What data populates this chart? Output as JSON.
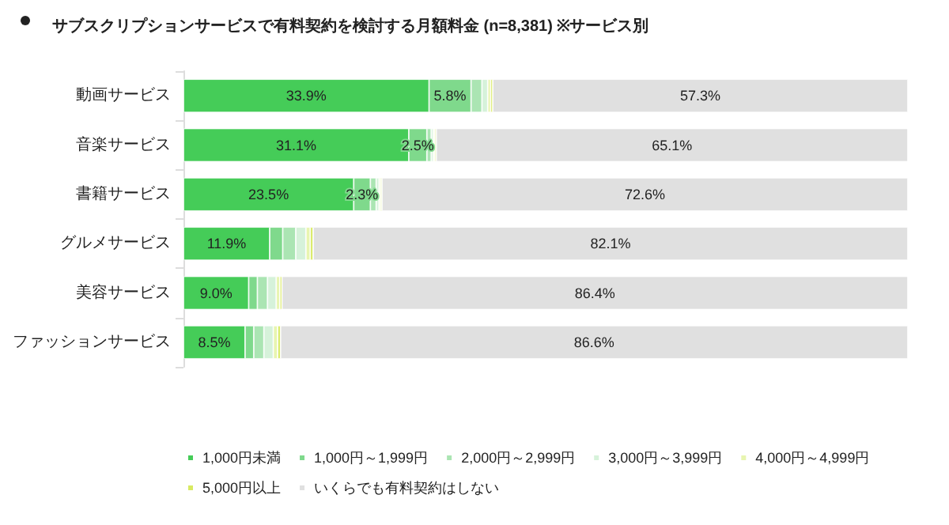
{
  "chart_data": {
    "type": "bar",
    "orientation": "horizontal",
    "stacked": true,
    "title": "サブスクリプションサービスで有料契約を検討する月額料金 (n=8,381) ※サービス別",
    "categories": [
      "動画サービス",
      "音楽サービス",
      "書籍サービス",
      "グルメサービス",
      "美容サービス",
      "ファッションサービス"
    ],
    "series": [
      {
        "name": "1,000円未満",
        "color": "#45cc58",
        "values": [
          33.9,
          31.1,
          23.5,
          11.9,
          9.0,
          8.5
        ],
        "value_labels": [
          "33.9%",
          "31.1%",
          "23.5%",
          "11.9%",
          "9.0%",
          "8.5%"
        ]
      },
      {
        "name": "1,000円～1,999円",
        "color": "#7fd98c",
        "values": [
          5.8,
          2.5,
          2.3,
          1.8,
          1.2,
          1.2
        ],
        "value_labels": [
          "5.8%",
          "2.5%",
          "2.3%",
          null,
          null,
          null
        ]
      },
      {
        "name": "2,000円～2,999円",
        "color": "#abe5b3",
        "values": [
          1.5,
          0.6,
          0.8,
          1.8,
          1.4,
          1.4
        ]
      },
      {
        "name": "3,000円～3,999円",
        "color": "#d6f2da",
        "values": [
          0.8,
          0.3,
          0.4,
          1.4,
          1.2,
          1.3
        ]
      },
      {
        "name": "4,000円～4,999円",
        "color": "#e8f5b0",
        "values": [
          0.4,
          0.2,
          0.2,
          0.6,
          0.5,
          0.6
        ]
      },
      {
        "name": "5,000円以上",
        "color": "#d8ea62",
        "values": [
          0.3,
          0.2,
          0.2,
          0.4,
          0.3,
          0.4
        ]
      },
      {
        "name": "いくらでも有料契約はしない",
        "color": "#e0e0e0",
        "values": [
          57.3,
          65.1,
          72.6,
          82.1,
          86.4,
          86.6
        ],
        "value_labels": [
          "57.3%",
          "65.1%",
          "72.6%",
          "82.1%",
          "86.4%",
          "86.6%"
        ]
      }
    ],
    "xlim": [
      0,
      100
    ],
    "tick_labels": "y",
    "legend": "bottom"
  }
}
